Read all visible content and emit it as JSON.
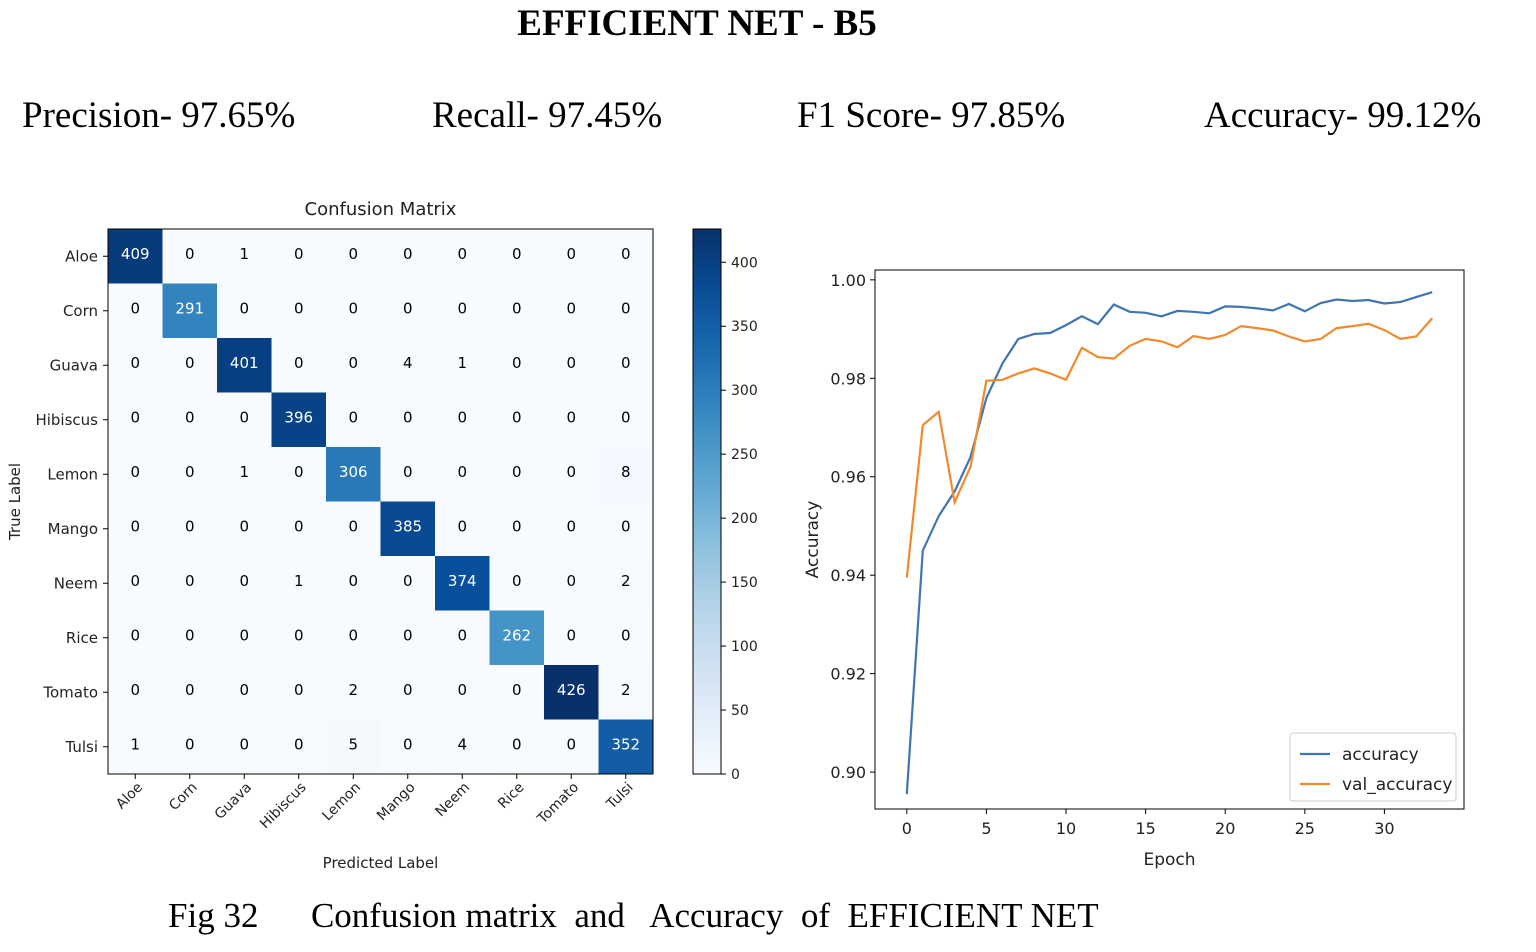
{
  "page": {
    "title": "EFFICIENT NET - B5",
    "metrics": {
      "precision": "Precision- 97.65%",
      "recall": "Recall- 97.45%",
      "f1": "F1 Score- 97.85%",
      "accuracy": "Accuracy- 99.12%"
    },
    "caption": "Fig 32      Confusion matrix  and   Accuracy  of  EFFICIENT NET"
  },
  "chart_data": [
    {
      "type": "heatmap",
      "title": "Confusion Matrix",
      "xlabel": "Predicted Label",
      "ylabel": "True Label",
      "labels": [
        "Aloe",
        "Corn",
        "Guava",
        "Hibiscus",
        "Lemon",
        "Mango",
        "Neem",
        "Rice",
        "Tomato",
        "Tulsi"
      ],
      "matrix": [
        [
          409,
          0,
          1,
          0,
          0,
          0,
          0,
          0,
          0,
          0
        ],
        [
          0,
          291,
          0,
          0,
          0,
          0,
          0,
          0,
          0,
          0
        ],
        [
          0,
          0,
          401,
          0,
          0,
          4,
          1,
          0,
          0,
          0
        ],
        [
          0,
          0,
          0,
          396,
          0,
          0,
          0,
          0,
          0,
          0
        ],
        [
          0,
          0,
          1,
          0,
          306,
          0,
          0,
          0,
          0,
          8
        ],
        [
          0,
          0,
          0,
          0,
          0,
          385,
          0,
          0,
          0,
          0
        ],
        [
          0,
          0,
          0,
          1,
          0,
          0,
          374,
          0,
          0,
          2
        ],
        [
          0,
          0,
          0,
          0,
          0,
          0,
          0,
          262,
          0,
          0
        ],
        [
          0,
          0,
          0,
          0,
          2,
          0,
          0,
          0,
          426,
          2
        ],
        [
          1,
          0,
          0,
          0,
          5,
          0,
          4,
          0,
          0,
          352
        ]
      ],
      "colormap": "Blues",
      "colorbar": {
        "min": 0,
        "max": 426,
        "ticks": [
          0,
          50,
          100,
          150,
          200,
          250,
          300,
          350,
          400
        ]
      }
    },
    {
      "type": "line",
      "xlabel": "Epoch",
      "ylabel": "Accuracy",
      "xlim": [
        -2,
        35
      ],
      "ylim": [
        0.8925,
        1.002
      ],
      "xticks": [
        0,
        5,
        10,
        15,
        20,
        25,
        30
      ],
      "yticks": [
        0.9,
        0.92,
        0.94,
        0.96,
        0.98,
        1.0
      ],
      "ytick_labels": [
        "0.90",
        "0.92",
        "0.94",
        "0.96",
        "0.98",
        "1.00"
      ],
      "legend": "lower-right",
      "x": [
        0,
        1,
        2,
        3,
        4,
        5,
        6,
        7,
        8,
        9,
        10,
        11,
        12,
        13,
        14,
        15,
        16,
        17,
        18,
        19,
        20,
        21,
        22,
        23,
        24,
        25,
        26,
        27,
        28,
        29,
        30,
        31,
        32,
        33
      ],
      "series": [
        {
          "name": "accuracy",
          "color": "#3f76b0",
          "values": [
            0.8955,
            0.945,
            0.952,
            0.957,
            0.964,
            0.976,
            0.983,
            0.988,
            0.989,
            0.9892,
            0.9908,
            0.9926,
            0.991,
            0.995,
            0.9935,
            0.9933,
            0.9926,
            0.9937,
            0.9935,
            0.9932,
            0.9946,
            0.9945,
            0.9942,
            0.9938,
            0.9951,
            0.9936,
            0.9953,
            0.996,
            0.9957,
            0.9959,
            0.9952,
            0.9955,
            0.9965,
            0.9975
          ]
        },
        {
          "name": "val_accuracy",
          "color": "#f08a2c",
          "values": [
            0.9395,
            0.9705,
            0.9732,
            0.9548,
            0.962,
            0.9795,
            0.9797,
            0.981,
            0.982,
            0.981,
            0.9797,
            0.9862,
            0.9843,
            0.984,
            0.9866,
            0.988,
            0.9875,
            0.9863,
            0.9886,
            0.988,
            0.9888,
            0.9906,
            0.9902,
            0.9897,
            0.9885,
            0.9875,
            0.988,
            0.9902,
            0.9906,
            0.9911,
            0.9898,
            0.988,
            0.9885,
            0.9922
          ]
        }
      ]
    }
  ]
}
